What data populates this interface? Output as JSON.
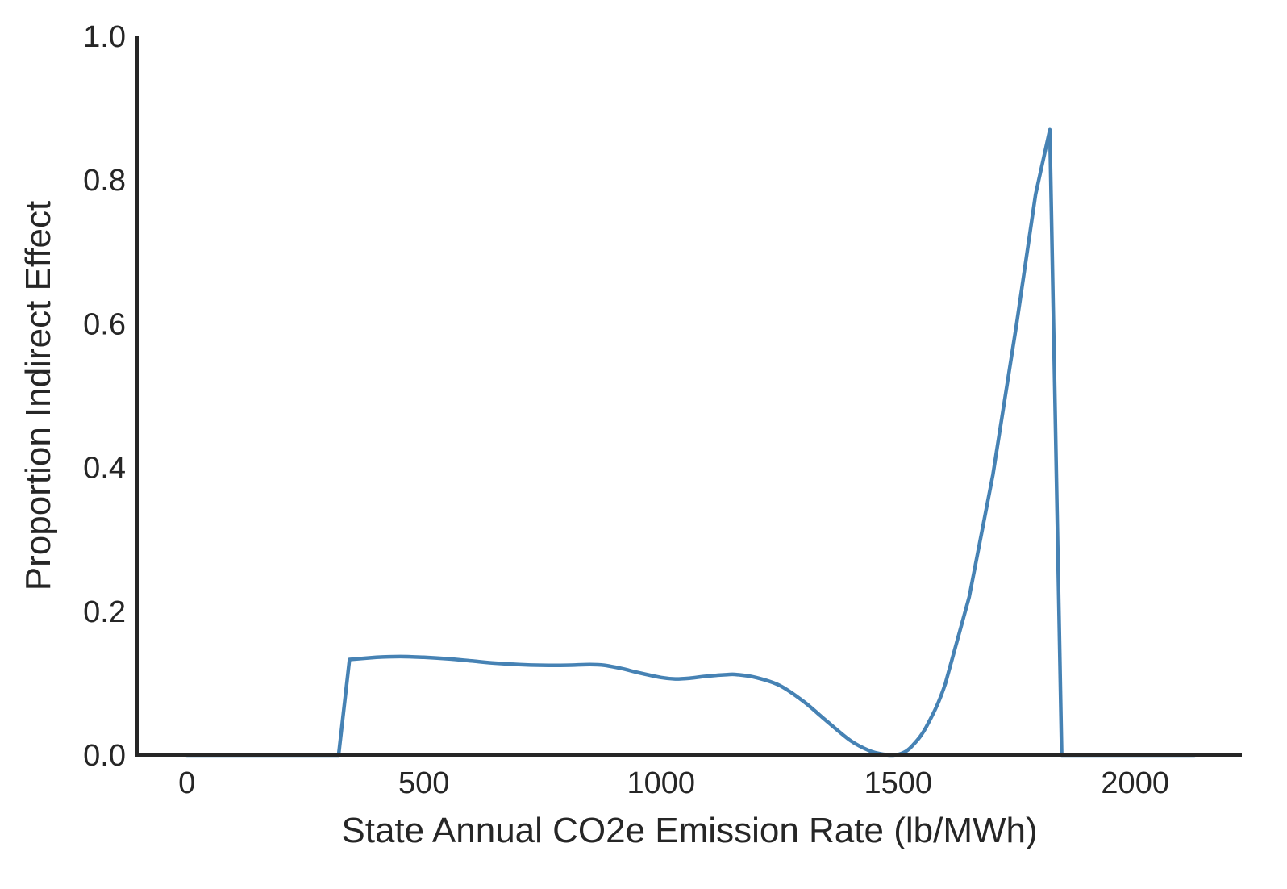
{
  "chart_data": {
    "type": "line",
    "title": "",
    "xlabel": "State Annual CO2e Emission Rate (lb/MWh)",
    "ylabel": "Proportion Indirect Effect",
    "xlim": [
      -105,
      2225
    ],
    "ylim": [
      0,
      1
    ],
    "x_ticks": [
      0,
      500,
      1000,
      1500,
      2000
    ],
    "x_tick_labels": [
      "0",
      "500",
      "1000",
      "1500",
      "2000"
    ],
    "y_ticks": [
      0.0,
      0.2,
      0.4,
      0.6,
      0.8,
      1.0
    ],
    "y_tick_labels": [
      "0.0",
      "0.2",
      "0.4",
      "0.6",
      "0.8",
      "1.0"
    ],
    "grid": false,
    "legend": "none",
    "line_color": "#4682b4",
    "axis_color": "#262626",
    "series": [
      {
        "x": [
          0,
          100,
          200,
          300,
          320,
          343,
          400,
          450,
          500,
          550,
          600,
          650,
          700,
          750,
          800,
          850,
          880,
          920,
          950,
          1000,
          1030,
          1060,
          1100,
          1140,
          1160,
          1200,
          1250,
          1300,
          1350,
          1400,
          1440,
          1470,
          1490,
          1510,
          1530,
          1560,
          1600,
          1650,
          1700,
          1750,
          1790,
          1820,
          1845,
          1900,
          2000,
          2125
        ],
        "y": [
          0,
          0,
          0,
          0,
          0,
          0.133,
          0.136,
          0.137,
          0.136,
          0.134,
          0.131,
          0.128,
          0.126,
          0.125,
          0.125,
          0.126,
          0.125,
          0.12,
          0.115,
          0.108,
          0.106,
          0.107,
          0.11,
          0.112,
          0.112,
          0.108,
          0.097,
          0.075,
          0.047,
          0.02,
          0.006,
          0.001,
          0,
          0.003,
          0.013,
          0.04,
          0.1,
          0.22,
          0.39,
          0.6,
          0.78,
          0.87,
          0,
          0,
          0,
          0
        ]
      }
    ]
  }
}
